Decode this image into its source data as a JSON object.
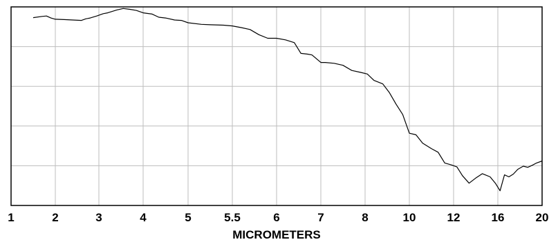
{
  "chart_data": {
    "type": "line",
    "title": "",
    "xlabel": "MICROMETERS",
    "ylabel": "",
    "grid": true,
    "x_scale": "reciprocal",
    "xlim": [
      1,
      20
    ],
    "ylim": [
      0,
      5
    ],
    "x_tick_labels": [
      "1",
      "2",
      "3",
      "4",
      "5",
      "5.5",
      "6",
      "7",
      "8",
      "10",
      "12",
      "16",
      "20"
    ],
    "x_tick_values": [
      1,
      2,
      3,
      4,
      5,
      5.5,
      6,
      7,
      8,
      10,
      12,
      16,
      20
    ],
    "y_tick_labels": [],
    "series": [
      {
        "x": [
          1.5,
          1.7,
          1.8,
          1.9,
          2.0,
          2.2,
          2.4,
          2.6,
          2.7,
          2.8,
          2.95,
          3.1,
          3.2,
          3.4,
          3.55,
          3.7,
          3.85,
          4.0,
          4.2,
          4.35,
          4.5,
          4.7,
          4.85,
          5.0,
          5.15,
          5.25,
          5.4,
          5.5,
          5.6,
          5.7,
          5.8,
          5.9,
          6.0,
          6.2,
          6.4,
          6.55,
          6.7,
          6.8,
          7.0,
          7.1,
          7.3,
          7.5,
          7.7,
          7.9,
          8.1,
          8.4,
          8.8,
          9.1,
          9.4,
          9.7,
          10.0,
          10.3,
          10.6,
          11.0,
          11.3,
          11.6,
          11.9,
          12.3,
          12.8,
          13.4,
          14.0,
          14.6,
          15.3,
          15.8,
          16.2,
          16.6,
          17.0,
          17.4,
          17.8,
          18.3,
          18.7,
          19.1,
          19.5,
          20.0
        ],
        "y": [
          4.73,
          4.76,
          4.77,
          4.72,
          4.69,
          4.68,
          4.67,
          4.66,
          4.7,
          4.72,
          4.77,
          4.83,
          4.85,
          4.92,
          4.96,
          4.94,
          4.91,
          4.85,
          4.82,
          4.74,
          4.72,
          4.67,
          4.66,
          4.6,
          4.56,
          4.55,
          4.54,
          4.52,
          4.48,
          4.43,
          4.3,
          4.21,
          4.21,
          4.17,
          4.1,
          3.83,
          3.81,
          3.79,
          3.6,
          3.6,
          3.58,
          3.53,
          3.4,
          3.35,
          3.31,
          3.15,
          3.06,
          2.84,
          2.55,
          2.29,
          1.82,
          1.78,
          1.57,
          1.43,
          1.34,
          1.07,
          1.02,
          0.97,
          0.75,
          0.56,
          0.69,
          0.8,
          0.72,
          0.55,
          0.37,
          0.77,
          0.72,
          0.79,
          0.91,
          0.99,
          0.96,
          1.01,
          1.07,
          1.12
        ]
      }
    ]
  }
}
